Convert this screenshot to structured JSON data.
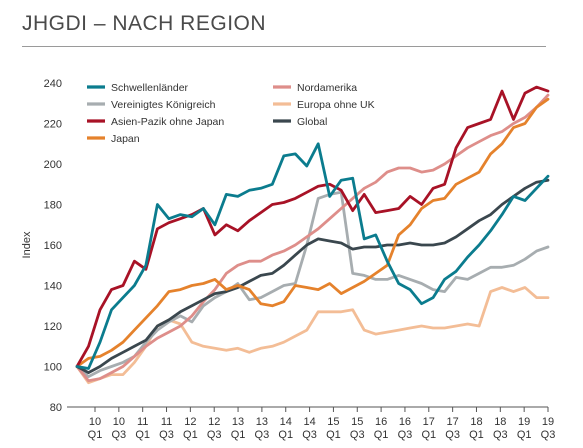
{
  "page": {
    "title": "JHGDI – NACH REGION"
  },
  "chart_data": {
    "type": "line",
    "title": "JHGDI – NACH REGION",
    "xlabel": "",
    "ylabel": "Index",
    "ylim": [
      80,
      240
    ],
    "yticks": [
      80,
      100,
      120,
      140,
      160,
      180,
      200,
      220,
      240
    ],
    "x_tick_labels": [
      [
        "10",
        "Q1"
      ],
      [
        "10",
        "Q3"
      ],
      [
        "11",
        "Q1"
      ],
      [
        "11",
        "Q3"
      ],
      [
        "12",
        "Q1"
      ],
      [
        "12",
        "Q3"
      ],
      [
        "13",
        "Q1"
      ],
      [
        "13",
        "Q3"
      ],
      [
        "14",
        "Q1"
      ],
      [
        "14",
        "Q3"
      ],
      [
        "15",
        "Q1"
      ],
      [
        "15",
        "Q3"
      ],
      [
        "16",
        "Q1"
      ],
      [
        "16",
        "Q3"
      ],
      [
        "17",
        "Q1"
      ],
      [
        "17",
        "Q3"
      ],
      [
        "18",
        "Q1"
      ],
      [
        "18",
        "Q3"
      ],
      [
        "19",
        "Q1"
      ],
      [
        "19",
        "Q3"
      ]
    ],
    "x_start": 2009.75,
    "grid": false,
    "legend_position": "top-left, three columns",
    "series": [
      {
        "name": "Schwellenländer",
        "color": "#0b7c8e",
        "values": [
          100,
          99,
          112,
          128,
          134,
          140,
          150,
          180,
          173,
          175,
          174,
          178,
          170,
          185,
          184,
          187,
          188,
          190,
          204,
          205,
          199,
          210,
          184,
          192,
          193,
          163,
          165,
          152,
          141,
          138,
          131,
          134,
          143,
          147,
          154,
          160,
          167,
          175,
          184,
          182,
          188,
          194
        ]
      },
      {
        "name": "Nordamerika",
        "color": "#de8e8a",
        "values": [
          100,
          93,
          94,
          97,
          100,
          105,
          110,
          114,
          117,
          120,
          125,
          132,
          138,
          146,
          150,
          152,
          152,
          155,
          157,
          160,
          164,
          168,
          173,
          178,
          183,
          188,
          191,
          196,
          198,
          198,
          196,
          197,
          200,
          204,
          208,
          211,
          214,
          216,
          220,
          223,
          228,
          234
        ]
      },
      {
        "name": "Vereinigtes Königreich",
        "color": "#a7adb0",
        "values": [
          100,
          95,
          98,
          100,
          102,
          105,
          112,
          118,
          122,
          125,
          122,
          130,
          134,
          137,
          141,
          133,
          134,
          137,
          140,
          141,
          160,
          183,
          185,
          186,
          146,
          145,
          143,
          143,
          145,
          143,
          141,
          138,
          137,
          144,
          143,
          146,
          149,
          149,
          150,
          153,
          157,
          159
        ]
      },
      {
        "name": "Europa ohne UK",
        "color": "#f3bd96",
        "values": [
          100,
          92,
          94,
          96,
          96,
          102,
          110,
          120,
          123,
          121,
          112,
          110,
          109,
          108,
          109,
          107,
          109,
          110,
          112,
          115,
          118,
          127,
          127,
          127,
          128,
          118,
          116,
          117,
          118,
          119,
          120,
          119,
          119,
          120,
          121,
          120,
          137,
          139,
          137,
          139,
          134,
          134
        ]
      },
      {
        "name": "Asien-Pazik ohne Japan",
        "color": "#a81226",
        "values": [
          100,
          110,
          128,
          138,
          140,
          152,
          148,
          168,
          171,
          173,
          175,
          178,
          165,
          170,
          167,
          172,
          176,
          180,
          181,
          183,
          186,
          189,
          190,
          187,
          177,
          185,
          176,
          177,
          178,
          184,
          180,
          188,
          190,
          208,
          218,
          220,
          222,
          236,
          222,
          235,
          238,
          236
        ]
      },
      {
        "name": "Global",
        "color": "#3a474e",
        "values": [
          100,
          97,
          100,
          104,
          107,
          110,
          113,
          120,
          123,
          127,
          130,
          133,
          136,
          137,
          139,
          142,
          145,
          146,
          150,
          155,
          160,
          163,
          162,
          161,
          158,
          159,
          159,
          160,
          160,
          161,
          160,
          160,
          161,
          164,
          168,
          172,
          175,
          180,
          184,
          188,
          191,
          192
        ]
      },
      {
        "name": "Japan",
        "color": "#e5822c",
        "values": [
          100,
          104,
          105,
          108,
          112,
          118,
          124,
          130,
          137,
          138,
          140,
          141,
          143,
          138,
          140,
          138,
          131,
          130,
          132,
          140,
          139,
          138,
          141,
          136,
          139,
          142,
          146,
          150,
          165,
          170,
          178,
          182,
          183,
          190,
          193,
          196,
          205,
          210,
          218,
          220,
          228,
          232
        ]
      }
    ]
  }
}
